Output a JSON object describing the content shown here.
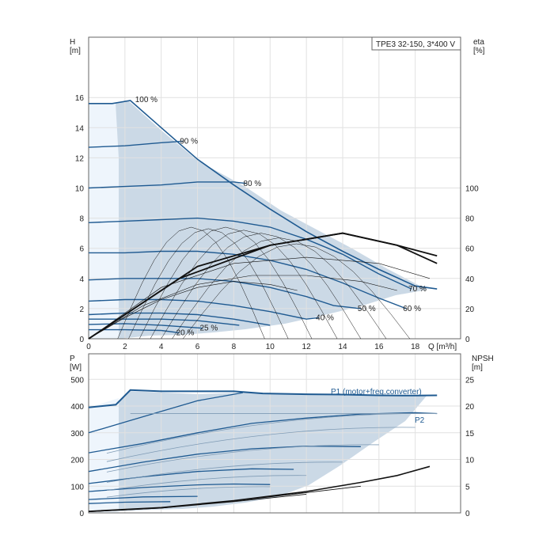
{
  "title_box": "TPE3 32-150, 3*400 V",
  "colors": {
    "curve": "#1f5a91",
    "envelope": "#cbd9e6",
    "grid": "#e1e1e1",
    "eta": "#111111"
  },
  "chart_data": [
    {
      "type": "line",
      "title": "",
      "xlabel": "Q [m³/h]",
      "ylabel_left": "H\n[m]",
      "ylabel_right": "eta\n[%]",
      "xlim": [
        0,
        20.5
      ],
      "ylim_left": [
        0,
        20
      ],
      "ylim_right": [
        0,
        200
      ],
      "x_ticks": [
        0,
        2,
        4,
        6,
        8,
        10,
        12,
        14,
        16,
        18
      ],
      "y_ticks_left": [
        0,
        2,
        4,
        6,
        8,
        10,
        12,
        14,
        16
      ],
      "y_ticks_right": [
        0,
        20,
        40,
        60,
        80,
        100
      ],
      "grid": true,
      "speed_curves": [
        {
          "label": "100 %",
          "q": [
            0,
            1.3,
            2.3,
            4,
            6,
            8,
            10,
            12,
            14,
            16,
            18,
            19.2
          ],
          "h": [
            15.6,
            15.6,
            15.8,
            14,
            11.9,
            10.2,
            8.6,
            7.1,
            5.8,
            4.6,
            3.5,
            3.3
          ]
        },
        {
          "label": "90 %",
          "q": [
            0,
            2,
            4,
            5.2
          ],
          "h": [
            12.7,
            12.8,
            13,
            13.1
          ]
        },
        {
          "label": "80 %",
          "q": [
            0,
            2,
            4,
            6,
            8,
            8.7
          ],
          "h": [
            10,
            10.1,
            10.2,
            10.4,
            10.4,
            10.3
          ]
        },
        {
          "label": "70 %",
          "q": [
            0,
            2,
            4,
            6,
            8,
            10,
            12,
            14,
            16,
            17.8
          ],
          "h": [
            7.7,
            7.8,
            7.9,
            8,
            7.8,
            7.4,
            6.6,
            5.6,
            4.3,
            3.3
          ]
        },
        {
          "label": "60 %",
          "q": [
            0,
            2,
            4,
            6,
            8,
            10,
            12,
            14,
            16,
            17.5
          ],
          "h": [
            5.7,
            5.7,
            5.8,
            5.8,
            5.6,
            5.2,
            4.6,
            3.7,
            2.7,
            2.0
          ]
        },
        {
          "label": "50 %",
          "q": [
            0,
            2,
            4,
            6,
            8,
            10,
            12,
            13.5,
            15
          ],
          "h": [
            3.9,
            4.0,
            4.0,
            4.0,
            3.8,
            3.4,
            2.8,
            2.2,
            2.0
          ]
        },
        {
          "label": "40 %",
          "q": [
            0,
            2,
            4,
            6,
            8,
            10,
            12,
            12.7
          ],
          "h": [
            2.5,
            2.6,
            2.6,
            2.5,
            2.2,
            1.8,
            1.3,
            1.4
          ]
        },
        {
          "label": "",
          "q": [
            0,
            2,
            4,
            6,
            8,
            10
          ],
          "h": [
            1.6,
            1.7,
            1.7,
            1.6,
            1.3,
            0.9
          ]
        },
        {
          "label": "",
          "q": [
            0,
            2,
            4,
            6,
            8.3
          ],
          "h": [
            1.3,
            1.3,
            1.3,
            1.2,
            0.9
          ]
        },
        {
          "label": "25 %",
          "q": [
            0,
            2,
            4,
            6.3
          ],
          "h": [
            0.95,
            1.0,
            0.9,
            0.7
          ]
        },
        {
          "label": "20 %",
          "q": [
            0,
            2,
            4,
            5.0
          ],
          "h": [
            0.6,
            0.6,
            0.55,
            0.4
          ]
        }
      ],
      "eta_curves_pct": [
        {
          "q": [
            0,
            2,
            4,
            6,
            8,
            10,
            11.5
          ],
          "eta": [
            0,
            14,
            26,
            34,
            38,
            36,
            32
          ]
        },
        {
          "q": [
            0,
            3,
            6,
            9,
            12,
            15,
            17
          ],
          "eta": [
            0,
            22,
            36,
            42,
            42,
            38,
            32
          ]
        },
        {
          "q": [
            0,
            4,
            8,
            12,
            16,
            18.8
          ],
          "eta": [
            0,
            34,
            50,
            54,
            50,
            40
          ]
        },
        {
          "q": [
            0,
            5,
            10,
            14,
            17,
            19.2
          ],
          "eta": [
            0,
            40,
            62,
            70,
            62,
            50
          ]
        },
        {
          "q": [
            0,
            6,
            10,
            14,
            17,
            19.2
          ],
          "eta": [
            0,
            48,
            62,
            70,
            62,
            55
          ]
        }
      ]
    },
    {
      "type": "line",
      "title": "",
      "xlabel": "",
      "ylabel_left": "P\n[W]",
      "ylabel_right": "NPSH\n[m]",
      "ylim_left": [
        0,
        600
      ],
      "ylim_right": [
        0,
        30
      ],
      "y_ticks_left": [
        0,
        100,
        200,
        300,
        400,
        500
      ],
      "y_ticks_right": [
        0,
        5,
        10,
        15,
        20,
        25
      ],
      "series_labels": [
        "P1 (motor+freq.converter)",
        "P2"
      ],
      "p1_top": {
        "q": [
          0,
          1.5,
          2.3,
          4,
          6,
          8,
          9.6,
          12,
          14,
          16,
          18,
          19.2
        ],
        "p": [
          395,
          405,
          460,
          455,
          455,
          455,
          447,
          444,
          443,
          440,
          439,
          440
        ]
      },
      "p1_curves": [
        {
          "q": [
            0,
            2,
            4,
            6,
            8.5
          ],
          "p": [
            300,
            340,
            380,
            420,
            450
          ]
        },
        {
          "q": [
            0,
            3,
            6,
            9,
            12,
            15,
            18,
            19.2
          ],
          "p": [
            225,
            260,
            300,
            335,
            355,
            370,
            375,
            372
          ]
        },
        {
          "q": [
            0,
            3,
            6,
            9,
            12,
            15
          ],
          "p": [
            155,
            190,
            220,
            240,
            250,
            248
          ]
        },
        {
          "q": [
            0,
            3,
            6,
            9,
            11.3
          ],
          "p": [
            110,
            135,
            155,
            165,
            163
          ]
        },
        {
          "q": [
            0,
            3,
            6,
            8,
            10
          ],
          "p": [
            80,
            95,
            105,
            108,
            106
          ]
        },
        {
          "q": [
            0,
            3,
            6
          ],
          "p": [
            50,
            60,
            62
          ]
        },
        {
          "q": [
            0,
            2,
            4.5
          ],
          "p": [
            35,
            40,
            42
          ]
        }
      ],
      "npsh_curves": [
        {
          "q": [
            0,
            4,
            8,
            12,
            15,
            17,
            18.8
          ],
          "npsh": [
            0.3,
            1.0,
            2.3,
            4.0,
            5.7,
            7.0,
            8.7
          ]
        },
        {
          "q": [
            0,
            4,
            8,
            12,
            15
          ],
          "npsh": [
            0.2,
            0.9,
            2.2,
            3.8,
            5.0
          ]
        },
        {
          "q": [
            0,
            4,
            8,
            12
          ],
          "npsh": [
            0.2,
            0.9,
            2.1,
            3.5
          ]
        }
      ]
    }
  ]
}
